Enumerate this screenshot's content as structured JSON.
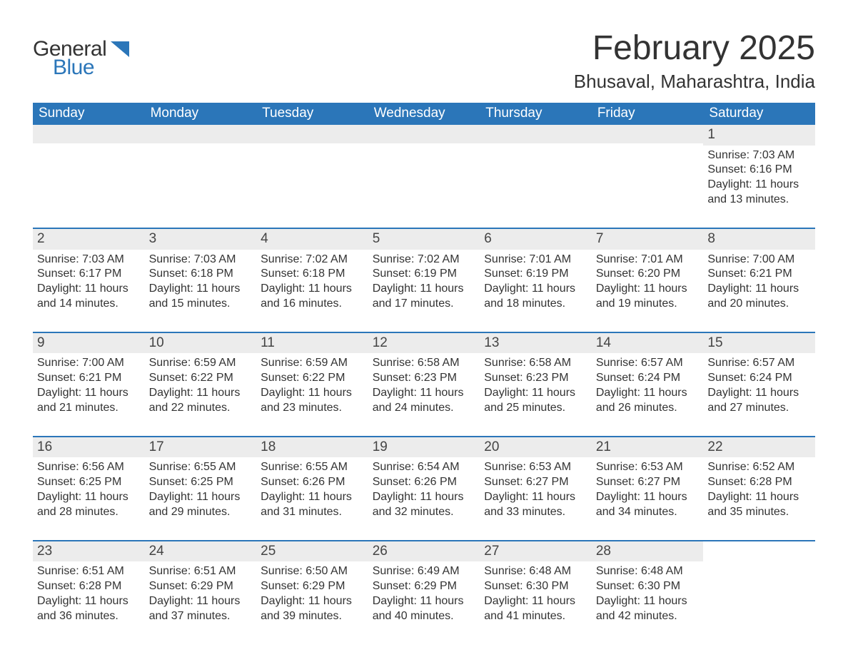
{
  "logo": {
    "word1": "General",
    "word2": "Blue"
  },
  "title": "February 2025",
  "location": "Bhusaval, Maharashtra, India",
  "colors": {
    "header_blue": "#2b76b9",
    "row_border": "#2b76b9",
    "day_bg": "#ececec",
    "text": "#333333",
    "bg": "#ffffff",
    "logo_blue": "#2b76b9"
  },
  "weekday_labels": [
    "Sunday",
    "Monday",
    "Tuesday",
    "Wednesday",
    "Thursday",
    "Friday",
    "Saturday"
  ],
  "weeks": [
    [
      null,
      null,
      null,
      null,
      null,
      null,
      {
        "n": "1",
        "sunrise": "Sunrise: 7:03 AM",
        "sunset": "Sunset: 6:16 PM",
        "daylight1": "Daylight: 11 hours",
        "daylight2": "and 13 minutes."
      }
    ],
    [
      {
        "n": "2",
        "sunrise": "Sunrise: 7:03 AM",
        "sunset": "Sunset: 6:17 PM",
        "daylight1": "Daylight: 11 hours",
        "daylight2": "and 14 minutes."
      },
      {
        "n": "3",
        "sunrise": "Sunrise: 7:03 AM",
        "sunset": "Sunset: 6:18 PM",
        "daylight1": "Daylight: 11 hours",
        "daylight2": "and 15 minutes."
      },
      {
        "n": "4",
        "sunrise": "Sunrise: 7:02 AM",
        "sunset": "Sunset: 6:18 PM",
        "daylight1": "Daylight: 11 hours",
        "daylight2": "and 16 minutes."
      },
      {
        "n": "5",
        "sunrise": "Sunrise: 7:02 AM",
        "sunset": "Sunset: 6:19 PM",
        "daylight1": "Daylight: 11 hours",
        "daylight2": "and 17 minutes."
      },
      {
        "n": "6",
        "sunrise": "Sunrise: 7:01 AM",
        "sunset": "Sunset: 6:19 PM",
        "daylight1": "Daylight: 11 hours",
        "daylight2": "and 18 minutes."
      },
      {
        "n": "7",
        "sunrise": "Sunrise: 7:01 AM",
        "sunset": "Sunset: 6:20 PM",
        "daylight1": "Daylight: 11 hours",
        "daylight2": "and 19 minutes."
      },
      {
        "n": "8",
        "sunrise": "Sunrise: 7:00 AM",
        "sunset": "Sunset: 6:21 PM",
        "daylight1": "Daylight: 11 hours",
        "daylight2": "and 20 minutes."
      }
    ],
    [
      {
        "n": "9",
        "sunrise": "Sunrise: 7:00 AM",
        "sunset": "Sunset: 6:21 PM",
        "daylight1": "Daylight: 11 hours",
        "daylight2": "and 21 minutes."
      },
      {
        "n": "10",
        "sunrise": "Sunrise: 6:59 AM",
        "sunset": "Sunset: 6:22 PM",
        "daylight1": "Daylight: 11 hours",
        "daylight2": "and 22 minutes."
      },
      {
        "n": "11",
        "sunrise": "Sunrise: 6:59 AM",
        "sunset": "Sunset: 6:22 PM",
        "daylight1": "Daylight: 11 hours",
        "daylight2": "and 23 minutes."
      },
      {
        "n": "12",
        "sunrise": "Sunrise: 6:58 AM",
        "sunset": "Sunset: 6:23 PM",
        "daylight1": "Daylight: 11 hours",
        "daylight2": "and 24 minutes."
      },
      {
        "n": "13",
        "sunrise": "Sunrise: 6:58 AM",
        "sunset": "Sunset: 6:23 PM",
        "daylight1": "Daylight: 11 hours",
        "daylight2": "and 25 minutes."
      },
      {
        "n": "14",
        "sunrise": "Sunrise: 6:57 AM",
        "sunset": "Sunset: 6:24 PM",
        "daylight1": "Daylight: 11 hours",
        "daylight2": "and 26 minutes."
      },
      {
        "n": "15",
        "sunrise": "Sunrise: 6:57 AM",
        "sunset": "Sunset: 6:24 PM",
        "daylight1": "Daylight: 11 hours",
        "daylight2": "and 27 minutes."
      }
    ],
    [
      {
        "n": "16",
        "sunrise": "Sunrise: 6:56 AM",
        "sunset": "Sunset: 6:25 PM",
        "daylight1": "Daylight: 11 hours",
        "daylight2": "and 28 minutes."
      },
      {
        "n": "17",
        "sunrise": "Sunrise: 6:55 AM",
        "sunset": "Sunset: 6:25 PM",
        "daylight1": "Daylight: 11 hours",
        "daylight2": "and 29 minutes."
      },
      {
        "n": "18",
        "sunrise": "Sunrise: 6:55 AM",
        "sunset": "Sunset: 6:26 PM",
        "daylight1": "Daylight: 11 hours",
        "daylight2": "and 31 minutes."
      },
      {
        "n": "19",
        "sunrise": "Sunrise: 6:54 AM",
        "sunset": "Sunset: 6:26 PM",
        "daylight1": "Daylight: 11 hours",
        "daylight2": "and 32 minutes."
      },
      {
        "n": "20",
        "sunrise": "Sunrise: 6:53 AM",
        "sunset": "Sunset: 6:27 PM",
        "daylight1": "Daylight: 11 hours",
        "daylight2": "and 33 minutes."
      },
      {
        "n": "21",
        "sunrise": "Sunrise: 6:53 AM",
        "sunset": "Sunset: 6:27 PM",
        "daylight1": "Daylight: 11 hours",
        "daylight2": "and 34 minutes."
      },
      {
        "n": "22",
        "sunrise": "Sunrise: 6:52 AM",
        "sunset": "Sunset: 6:28 PM",
        "daylight1": "Daylight: 11 hours",
        "daylight2": "and 35 minutes."
      }
    ],
    [
      {
        "n": "23",
        "sunrise": "Sunrise: 6:51 AM",
        "sunset": "Sunset: 6:28 PM",
        "daylight1": "Daylight: 11 hours",
        "daylight2": "and 36 minutes."
      },
      {
        "n": "24",
        "sunrise": "Sunrise: 6:51 AM",
        "sunset": "Sunset: 6:29 PM",
        "daylight1": "Daylight: 11 hours",
        "daylight2": "and 37 minutes."
      },
      {
        "n": "25",
        "sunrise": "Sunrise: 6:50 AM",
        "sunset": "Sunset: 6:29 PM",
        "daylight1": "Daylight: 11 hours",
        "daylight2": "and 39 minutes."
      },
      {
        "n": "26",
        "sunrise": "Sunrise: 6:49 AM",
        "sunset": "Sunset: 6:29 PM",
        "daylight1": "Daylight: 11 hours",
        "daylight2": "and 40 minutes."
      },
      {
        "n": "27",
        "sunrise": "Sunrise: 6:48 AM",
        "sunset": "Sunset: 6:30 PM",
        "daylight1": "Daylight: 11 hours",
        "daylight2": "and 41 minutes."
      },
      {
        "n": "28",
        "sunrise": "Sunrise: 6:48 AM",
        "sunset": "Sunset: 6:30 PM",
        "daylight1": "Daylight: 11 hours",
        "daylight2": "and 42 minutes."
      },
      null
    ]
  ]
}
